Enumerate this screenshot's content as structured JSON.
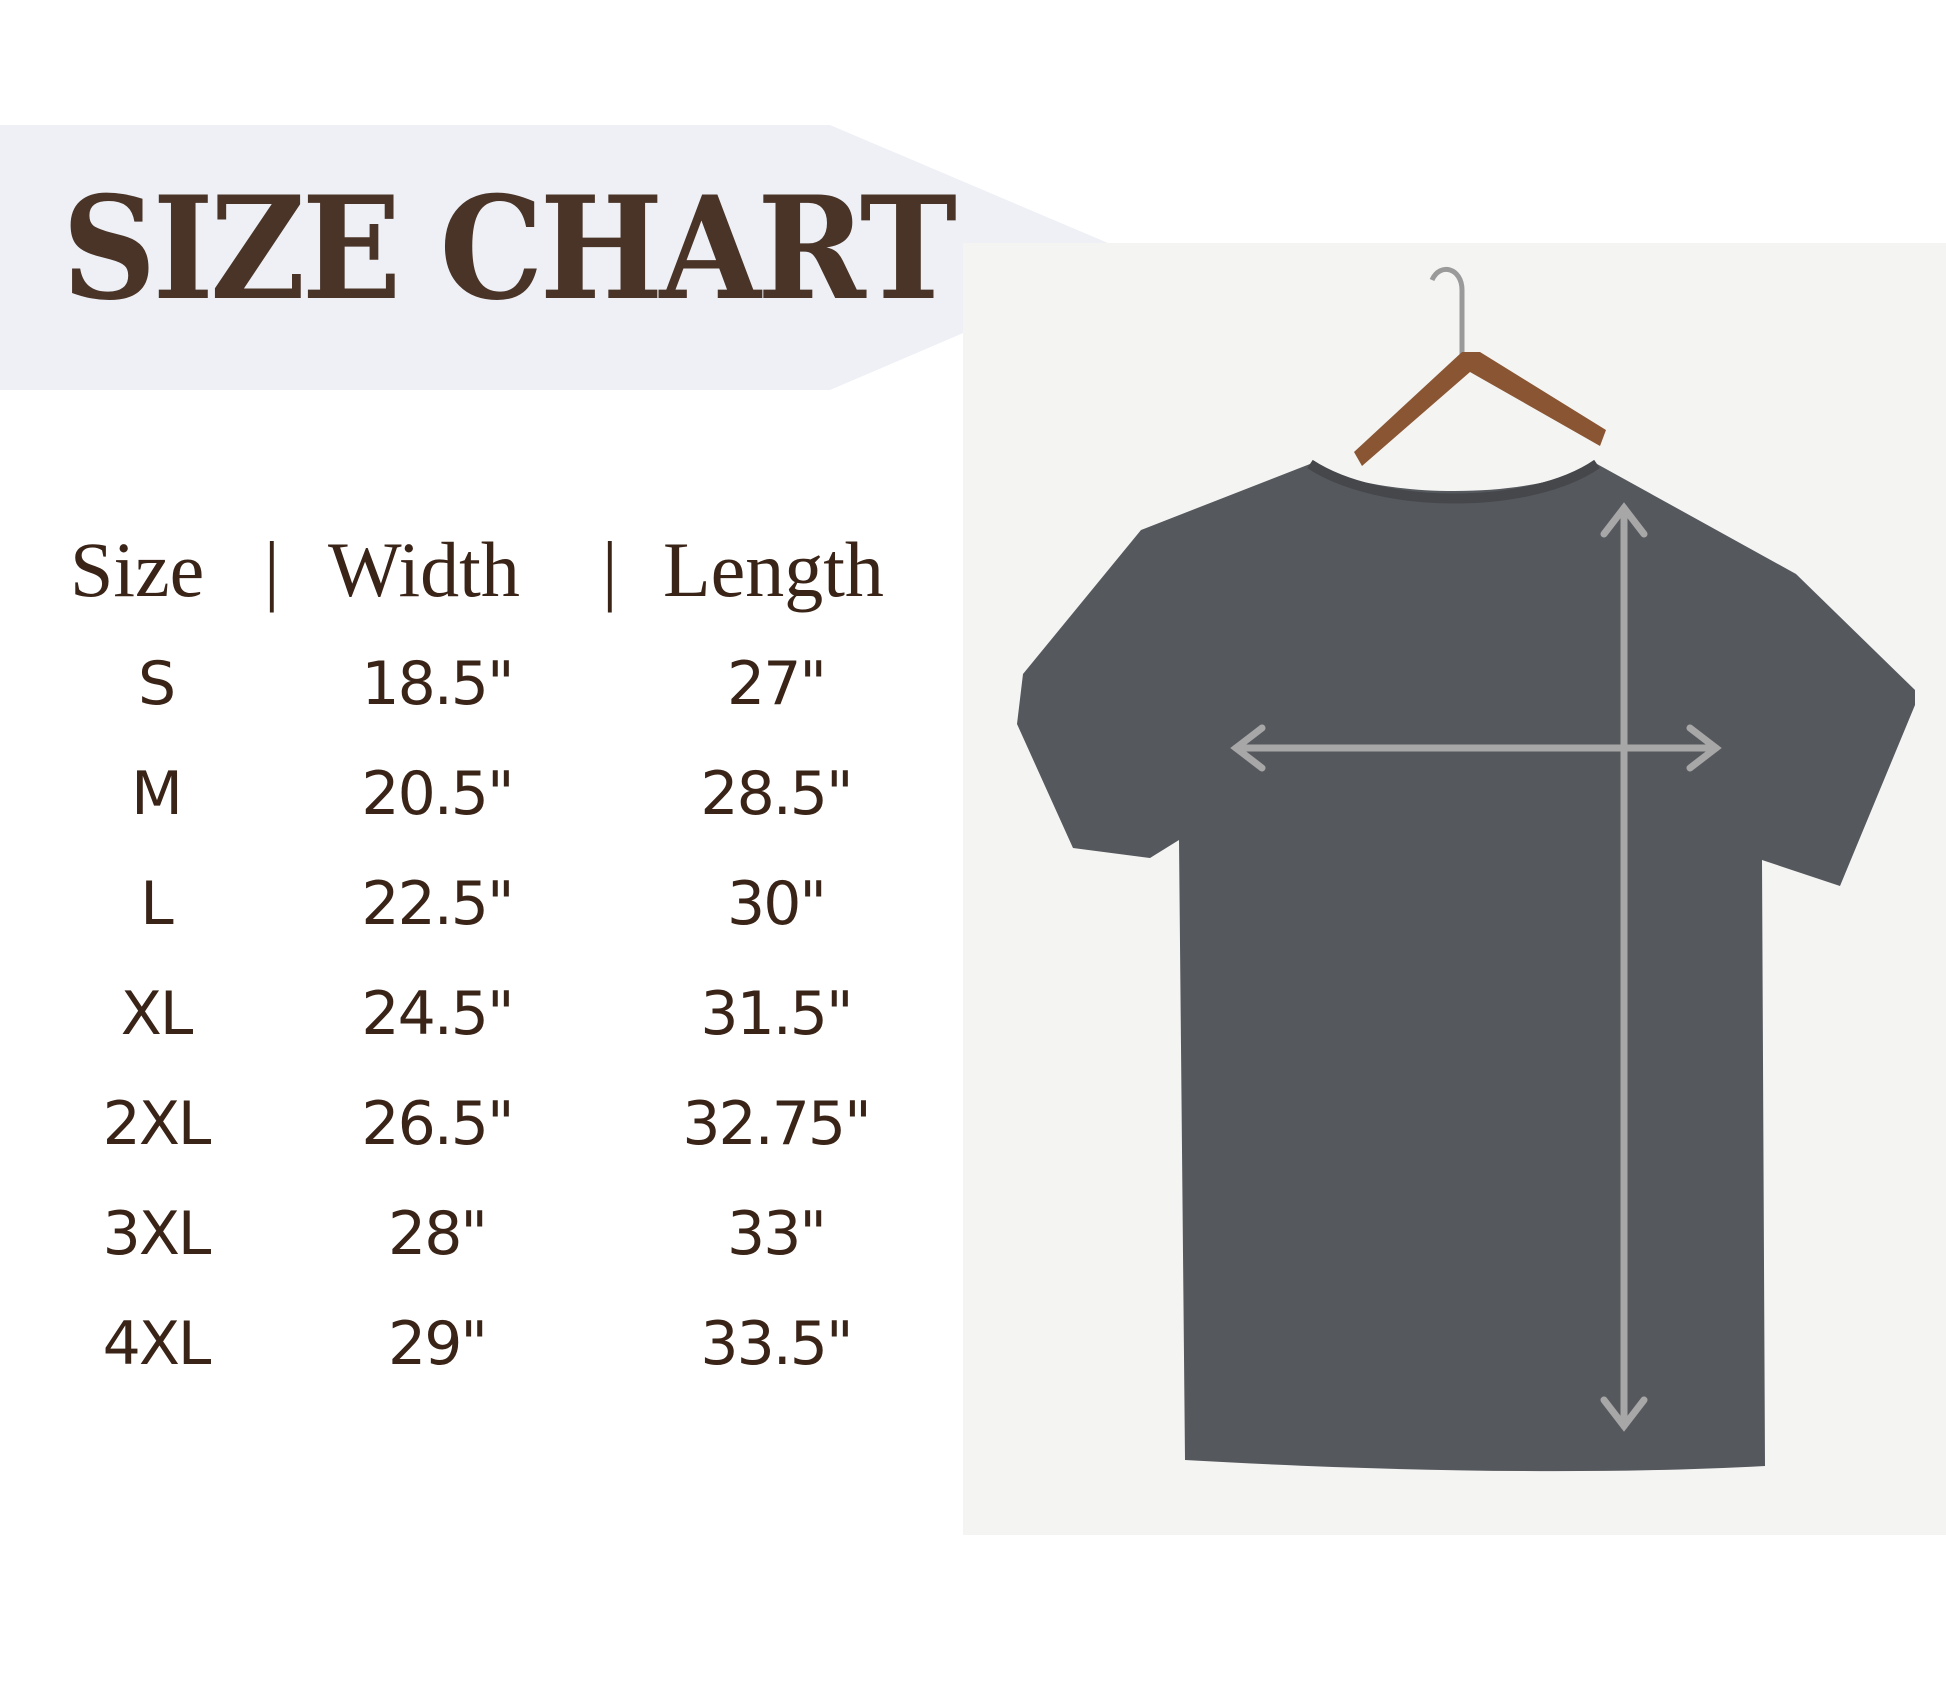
{
  "title": "SIZE CHART",
  "colors": {
    "text": "#3a2418",
    "title": "#4a3428",
    "banner": "#eef0f5",
    "shirt": "#55585d",
    "arrow": "#a7a7a7"
  },
  "header": {
    "size": "Size",
    "sep1": "|",
    "width": "Width",
    "sep2": "|",
    "length": "Length"
  },
  "rows": [
    {
      "size": "S",
      "width": "18.5\"",
      "length": "27\""
    },
    {
      "size": "M",
      "width": "20.5\"",
      "length": "28.5\""
    },
    {
      "size": "L",
      "width": "22.5\"",
      "length": "30\""
    },
    {
      "size": "XL",
      "width": "24.5\"",
      "length": "31.5\""
    },
    {
      "size": "2XL",
      "width": "26.5\"",
      "length": "32.75\""
    },
    {
      "size": "3XL",
      "width": "28\"",
      "length": "33\""
    },
    {
      "size": "4XL",
      "width": "29\"",
      "length": "33.5\""
    }
  ]
}
